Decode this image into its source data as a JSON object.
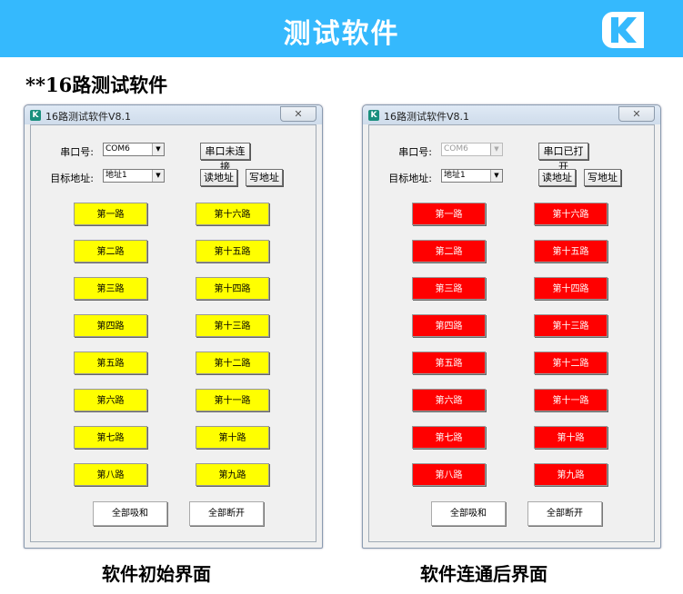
{
  "banner": {
    "title": "测试软件",
    "bg_color": "#35b9fd",
    "logo_icon": "k-logo-icon"
  },
  "subtitle": "**16路测试软件",
  "windows": [
    {
      "title": "16路测试软件V8.1",
      "close_glyph": "✕",
      "port_label": "串口号:",
      "port_value": "COM6",
      "port_disabled": false,
      "addr_label": "目标地址:",
      "addr_value": "地址1",
      "connect_button": "串口未连接",
      "read_button": "读地址",
      "write_button": "写地址",
      "channel_color": "#ffff00",
      "channels_left": [
        "第一路",
        "第二路",
        "第三路",
        "第四路",
        "第五路",
        "第六路",
        "第七路",
        "第八路"
      ],
      "channels_right": [
        "第十六路",
        "第十五路",
        "第十四路",
        "第十三路",
        "第十二路",
        "第十一路",
        "第十路",
        "第九路"
      ],
      "all_on_button": "全部吸和",
      "all_off_button": "全部断开",
      "caption": "软件初始界面"
    },
    {
      "title": "16路测试软件V8.1",
      "close_glyph": "✕",
      "port_label": "串口号:",
      "port_value": "COM6",
      "port_disabled": true,
      "addr_label": "目标地址:",
      "addr_value": "地址1",
      "connect_button": "串口已打开",
      "read_button": "读地址",
      "write_button": "写地址",
      "channel_color": "#ff0000",
      "channels_left": [
        "第一路",
        "第二路",
        "第三路",
        "第四路",
        "第五路",
        "第六路",
        "第七路",
        "第八路"
      ],
      "channels_right": [
        "第十六路",
        "第十五路",
        "第十四路",
        "第十三路",
        "第十二路",
        "第十一路",
        "第十路",
        "第九路"
      ],
      "all_on_button": "全部吸和",
      "all_off_button": "全部断开",
      "caption": "软件连通后界面"
    }
  ]
}
